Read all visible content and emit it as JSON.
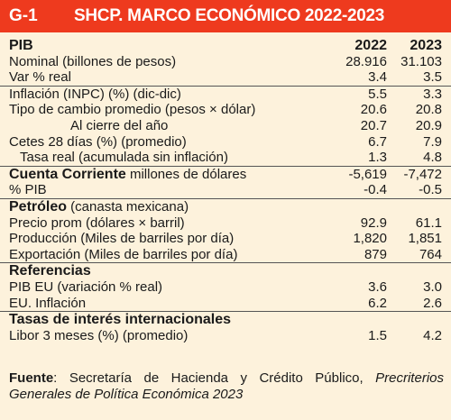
{
  "header": {
    "code": "G-1",
    "title": "SHCP. MARCO ECONÓMICO  2022-2023"
  },
  "columns": {
    "y1": "2022",
    "y2": "2023"
  },
  "rows": [
    {
      "label": "PIB",
      "v22": "",
      "v23": ""
    },
    {
      "label": "Nominal (billones de pesos)",
      "v22": "28.916",
      "v23": "31.103"
    },
    {
      "label": "Var % real",
      "v22": "3.4",
      "v23": "3.5"
    },
    {
      "label": "Inflación (INPC) (%) (dic-dic)",
      "v22": "5.5",
      "v23": "3.3"
    },
    {
      "label": "Tipo de cambio promedio (pesos × dólar)",
      "v22": "20.6",
      "v23": "20.8"
    },
    {
      "label": "Al cierre del año",
      "v22": "20.7",
      "v23": "20.9"
    },
    {
      "label": "Cetes 28 días (%) (promedio)",
      "v22": "6.7",
      "v23": "7.9"
    },
    {
      "label": "Tasa real (acumulada sin inflación)",
      "v22": "1.3",
      "v23": "4.8"
    },
    {
      "label_bold": "Cuenta Corriente",
      "label": " millones de dólares",
      "v22": "-5,619",
      "v23": "-7,472"
    },
    {
      "label": "% PIB",
      "v22": "-0.4",
      "v23": "-0.5"
    },
    {
      "label_bold": "Petróleo",
      "label": " (canasta mexicana)",
      "v22": "",
      "v23": ""
    },
    {
      "label": "Precio prom (dólares × barril)",
      "v22": "92.9",
      "v23": "61.1"
    },
    {
      "label": "Producción (Miles de barriles por día)",
      "v22": "1,820",
      "v23": "1,851"
    },
    {
      "label": "Exportación (Miles de barriles por día)",
      "v22": "879",
      "v23": "764"
    },
    {
      "label": "Referencias",
      "v22": "",
      "v23": ""
    },
    {
      "label": "PIB EU (variación % real)",
      "v22": "3.6",
      "v23": "3.0"
    },
    {
      "label": "EU. Inflación",
      "v22": "6.2",
      "v23": "2.6"
    },
    {
      "label": "Tasas de interés internacionales",
      "v22": "",
      "v23": ""
    },
    {
      "label": "Libor 3 meses (%) (promedio)",
      "v22": "1.5",
      "v23": "4.2"
    }
  ],
  "source": {
    "label": "Fuente",
    "text": ": Secretaría de Hacienda y Crédito Público, ",
    "italic": "Precriterios Generales de Política Económica 2023"
  },
  "colors": {
    "header_bg": "#ee3a1e",
    "page_bg": "#fdf2dc"
  }
}
